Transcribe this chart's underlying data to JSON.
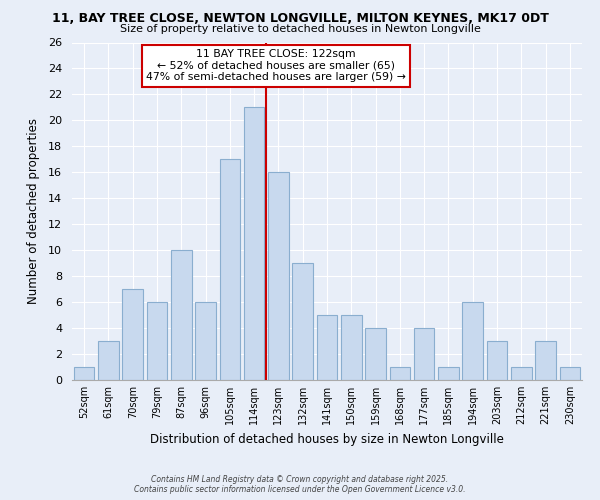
{
  "title_line1": "11, BAY TREE CLOSE, NEWTON LONGVILLE, MILTON KEYNES, MK17 0DT",
  "title_line2": "Size of property relative to detached houses in Newton Longville",
  "xlabel": "Distribution of detached houses by size in Newton Longville",
  "ylabel": "Number of detached properties",
  "bin_labels": [
    "52sqm",
    "61sqm",
    "70sqm",
    "79sqm",
    "87sqm",
    "96sqm",
    "105sqm",
    "114sqm",
    "123sqm",
    "132sqm",
    "141sqm",
    "150sqm",
    "159sqm",
    "168sqm",
    "177sqm",
    "185sqm",
    "194sqm",
    "203sqm",
    "212sqm",
    "221sqm",
    "230sqm"
  ],
  "bar_heights": [
    1,
    3,
    7,
    6,
    10,
    6,
    17,
    21,
    16,
    9,
    5,
    5,
    4,
    1,
    4,
    1,
    6,
    3,
    1,
    3,
    1
  ],
  "bar_color": "#c8d9ee",
  "bar_edge_color": "#8aaecf",
  "reference_line_x": 8,
  "reference_line_color": "#cc0000",
  "ylim": [
    0,
    26
  ],
  "yticks": [
    0,
    2,
    4,
    6,
    8,
    10,
    12,
    14,
    16,
    18,
    20,
    22,
    24,
    26
  ],
  "annotation_title": "11 BAY TREE CLOSE: 122sqm",
  "annotation_line1": "← 52% of detached houses are smaller (65)",
  "annotation_line2": "47% of semi-detached houses are larger (59) →",
  "annotation_box_color": "#ffffff",
  "annotation_box_edge": "#cc0000",
  "footer_line1": "Contains HM Land Registry data © Crown copyright and database right 2025.",
  "footer_line2": "Contains public sector information licensed under the Open Government Licence v3.0.",
  "background_color": "#e8eef8",
  "grid_color": "#ffffff",
  "plot_bg_color": "#dde6f5"
}
